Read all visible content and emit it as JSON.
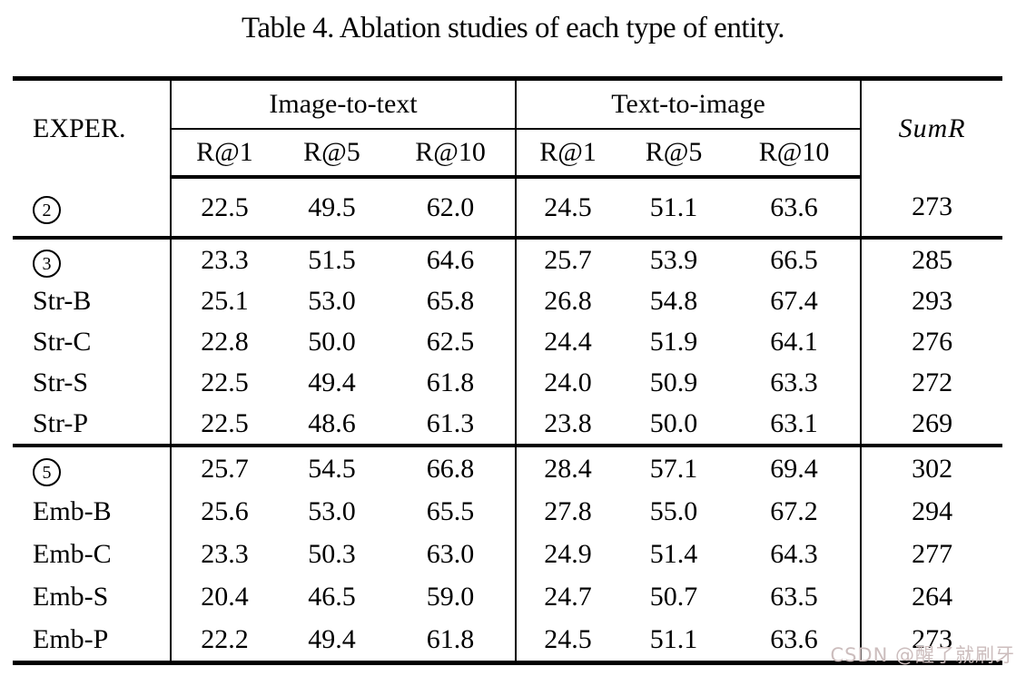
{
  "caption": "Table 4. Ablation studies of each type of entity.",
  "watermark": "CSDN @醒了就刷牙",
  "table": {
    "row_header": "EXPER.",
    "sum_header": "SumR",
    "groups": [
      {
        "label": "Image-to-text",
        "sub": [
          "R@1",
          "R@5",
          "R@10"
        ]
      },
      {
        "label": "Text-to-image",
        "sub": [
          "R@1",
          "R@5",
          "R@10"
        ]
      }
    ],
    "sections": [
      {
        "rows": [
          {
            "label": "2",
            "circled": true,
            "values": [
              "22.5",
              "49.5",
              "62.0",
              "24.5",
              "51.1",
              "63.6",
              "273"
            ]
          }
        ]
      },
      {
        "rows": [
          {
            "label": "3",
            "circled": true,
            "values": [
              "23.3",
              "51.5",
              "64.6",
              "25.7",
              "53.9",
              "66.5",
              "285"
            ]
          },
          {
            "label": "Str-B",
            "circled": false,
            "values": [
              "25.1",
              "53.0",
              "65.8",
              "26.8",
              "54.8",
              "67.4",
              "293"
            ]
          },
          {
            "label": "Str-C",
            "circled": false,
            "values": [
              "22.8",
              "50.0",
              "62.5",
              "24.4",
              "51.9",
              "64.1",
              "276"
            ]
          },
          {
            "label": "Str-S",
            "circled": false,
            "values": [
              "22.5",
              "49.4",
              "61.8",
              "24.0",
              "50.9",
              "63.3",
              "272"
            ]
          },
          {
            "label": "Str-P",
            "circled": false,
            "values": [
              "22.5",
              "48.6",
              "61.3",
              "23.8",
              "50.0",
              "63.1",
              "269"
            ]
          }
        ]
      },
      {
        "rows": [
          {
            "label": "5",
            "circled": true,
            "values": [
              "25.7",
              "54.5",
              "66.8",
              "28.4",
              "57.1",
              "69.4",
              "302"
            ]
          },
          {
            "label": "Emb-B",
            "circled": false,
            "values": [
              "25.6",
              "53.0",
              "65.5",
              "27.8",
              "55.0",
              "67.2",
              "294"
            ]
          },
          {
            "label": "Emb-C",
            "circled": false,
            "values": [
              "23.3",
              "50.3",
              "63.0",
              "24.9",
              "51.4",
              "64.3",
              "277"
            ]
          },
          {
            "label": "Emb-S",
            "circled": false,
            "values": [
              "20.4",
              "46.5",
              "59.0",
              "24.7",
              "50.7",
              "63.5",
              "264"
            ]
          },
          {
            "label": "Emb-P",
            "circled": false,
            "values": [
              "22.2",
              "49.4",
              "61.8",
              "24.5",
              "51.1",
              "63.6",
              "273"
            ]
          }
        ]
      }
    ]
  }
}
